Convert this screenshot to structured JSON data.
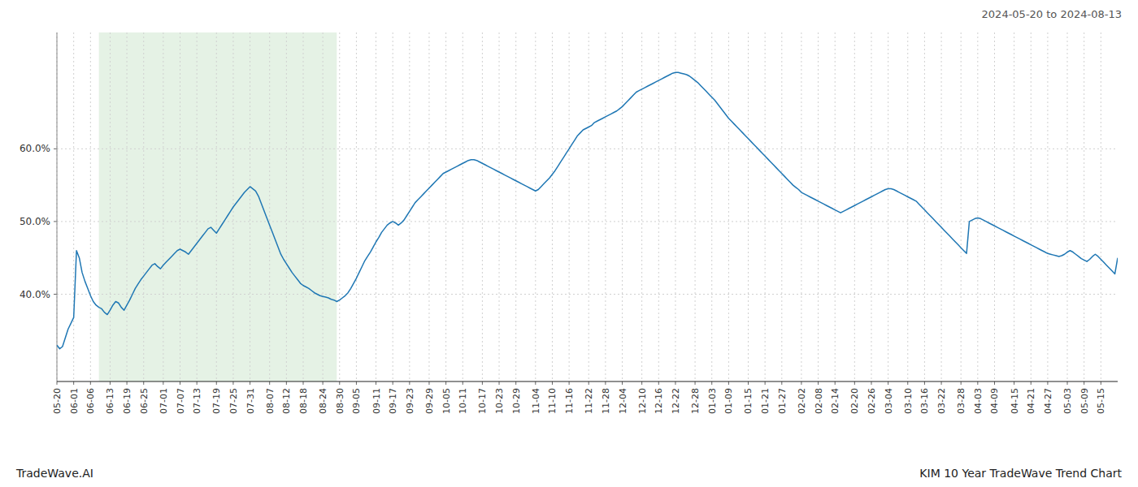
{
  "chart_data": {
    "type": "line",
    "title": "2024-05-20 to 2024-08-13",
    "annotations": [
      "TradeWave.AI",
      "KIM 10 Year TradeWave Trend Chart"
    ],
    "color": "#1f77b4",
    "grid": true,
    "ylim": [
      0.28,
      0.76
    ],
    "yticks": [
      {
        "value": 0.4,
        "label": "40.0%"
      },
      {
        "value": 0.5,
        "label": "50.0%"
      },
      {
        "value": 0.6,
        "label": "60.0%"
      }
    ],
    "highlight": {
      "from": 15,
      "to": 100,
      "color": "#d4ead4"
    },
    "categories": [
      "05-20",
      null,
      null,
      null,
      null,
      null,
      "06-01",
      null,
      null,
      null,
      null,
      null,
      "06-06",
      null,
      null,
      null,
      null,
      null,
      null,
      "06-13",
      null,
      null,
      null,
      null,
      null,
      "06-19",
      null,
      null,
      null,
      null,
      null,
      "06-25",
      null,
      null,
      null,
      null,
      null,
      null,
      "07-01",
      null,
      null,
      null,
      null,
      null,
      "07-07",
      null,
      null,
      null,
      null,
      null,
      "07-13",
      null,
      null,
      null,
      null,
      null,
      null,
      "07-19",
      null,
      null,
      null,
      null,
      null,
      "07-25",
      null,
      null,
      null,
      null,
      null,
      "07-31",
      null,
      null,
      null,
      null,
      null,
      null,
      "08-07",
      null,
      null,
      null,
      null,
      null,
      "08-12",
      null,
      null,
      null,
      null,
      null,
      "08-18",
      null,
      null,
      null,
      null,
      null,
      null,
      "08-24",
      null,
      null,
      null,
      null,
      null,
      "08-30",
      null,
      null,
      null,
      null,
      null,
      "09-05",
      null,
      null,
      null,
      null,
      null,
      null,
      "09-11",
      null,
      null,
      null,
      null,
      null,
      "09-17",
      null,
      null,
      null,
      null,
      null,
      "09-23",
      null,
      null,
      null,
      null,
      null,
      null,
      "09-29",
      null,
      null,
      null,
      null,
      null,
      "10-05",
      null,
      null,
      null,
      null,
      null,
      "10-11",
      null,
      null,
      null,
      null,
      null,
      null,
      "10-17",
      null,
      null,
      null,
      null,
      null,
      "10-23",
      null,
      null,
      null,
      null,
      null,
      "10-29",
      null,
      null,
      null,
      null,
      null,
      null,
      "11-04",
      null,
      null,
      null,
      null,
      null,
      "11-10",
      null,
      null,
      null,
      null,
      null,
      "11-16",
      null,
      null,
      null,
      null,
      null,
      null,
      "11-22",
      null,
      null,
      null,
      null,
      null,
      "11-28",
      null,
      null,
      null,
      null,
      null,
      "12-04",
      null,
      null,
      null,
      null,
      null,
      null,
      "12-10",
      null,
      null,
      null,
      null,
      null,
      "12-16",
      null,
      null,
      null,
      null,
      null,
      "12-22",
      null,
      null,
      null,
      null,
      null,
      null,
      "12-28",
      null,
      null,
      null,
      null,
      null,
      "01-03",
      null,
      null,
      null,
      null,
      null,
      "01-09",
      null,
      null,
      null,
      null,
      null,
      null,
      "01-15",
      null,
      null,
      null,
      null,
      null,
      "01-21",
      null,
      null,
      null,
      null,
      null,
      "01-27",
      null,
      null,
      null,
      null,
      null,
      null,
      "02-02",
      null,
      null,
      null,
      null,
      null,
      "02-08",
      null,
      null,
      null,
      null,
      null,
      "02-14",
      null,
      null,
      null,
      null,
      null,
      null,
      "02-20",
      null,
      null,
      null,
      null,
      null,
      "02-26",
      null,
      null,
      null,
      null,
      null,
      "03-04",
      null,
      null,
      null,
      null,
      null,
      null,
      "03-10",
      null,
      null,
      null,
      null,
      null,
      "03-16",
      null,
      null,
      null,
      null,
      null,
      "03-22",
      null,
      null,
      null,
      null,
      null,
      null,
      "03-28",
      null,
      null,
      null,
      null,
      null,
      "04-03",
      null,
      null,
      null,
      null,
      null,
      "04-09",
      null,
      null,
      null,
      null,
      null,
      null,
      "04-15",
      null,
      null,
      null,
      null,
      null,
      "04-21",
      null,
      null,
      null,
      null,
      null,
      "04-27",
      null,
      null,
      null,
      null,
      null,
      null,
      "05-03",
      null,
      null,
      null,
      null,
      null,
      "05-09",
      null,
      null,
      null,
      null,
      null,
      "05-15",
      null,
      null,
      null,
      null,
      null,
      null
    ],
    "values": [
      0.33,
      0.325,
      0.328,
      0.34,
      0.352,
      0.36,
      0.368,
      0.46,
      0.45,
      0.43,
      0.418,
      0.408,
      0.398,
      0.39,
      0.385,
      0.382,
      0.38,
      0.375,
      0.372,
      0.378,
      0.385,
      0.39,
      0.388,
      0.382,
      0.378,
      0.385,
      0.392,
      0.4,
      0.408,
      0.414,
      0.42,
      0.425,
      0.43,
      0.435,
      0.44,
      0.442,
      0.438,
      0.435,
      0.44,
      0.444,
      0.448,
      0.452,
      0.456,
      0.46,
      0.462,
      0.46,
      0.458,
      0.455,
      0.46,
      0.465,
      0.47,
      0.475,
      0.48,
      0.485,
      0.49,
      0.492,
      0.488,
      0.484,
      0.49,
      0.496,
      0.502,
      0.508,
      0.514,
      0.52,
      0.525,
      0.53,
      0.535,
      0.54,
      0.544,
      0.548,
      0.545,
      0.542,
      0.535,
      0.525,
      0.515,
      0.505,
      0.495,
      0.485,
      0.475,
      0.465,
      0.455,
      0.448,
      0.442,
      0.436,
      0.43,
      0.425,
      0.42,
      0.415,
      0.412,
      0.41,
      0.408,
      0.405,
      0.402,
      0.4,
      0.398,
      0.397,
      0.396,
      0.395,
      0.393,
      0.392,
      0.39,
      0.392,
      0.395,
      0.398,
      0.402,
      0.408,
      0.415,
      0.422,
      0.43,
      0.438,
      0.446,
      0.452,
      0.458,
      0.465,
      0.472,
      0.478,
      0.485,
      0.49,
      0.495,
      0.498,
      0.5,
      0.498,
      0.495,
      0.498,
      0.502,
      0.508,
      0.514,
      0.52,
      0.526,
      0.53,
      0.534,
      0.538,
      0.542,
      0.546,
      0.55,
      0.554,
      0.558,
      0.562,
      0.566,
      0.568,
      0.57,
      0.572,
      0.574,
      0.576,
      0.578,
      0.58,
      0.582,
      0.584,
      0.585,
      0.585,
      0.584,
      0.582,
      0.58,
      0.578,
      0.576,
      0.574,
      0.572,
      0.57,
      0.568,
      0.566,
      0.564,
      0.562,
      0.56,
      0.558,
      0.556,
      0.554,
      0.552,
      0.55,
      0.548,
      0.546,
      0.544,
      0.542,
      0.544,
      0.548,
      0.552,
      0.556,
      0.56,
      0.565,
      0.57,
      0.576,
      0.582,
      0.588,
      0.594,
      0.6,
      0.606,
      0.612,
      0.618,
      0.622,
      0.626,
      0.628,
      0.63,
      0.632,
      0.636,
      0.638,
      0.64,
      0.642,
      0.644,
      0.646,
      0.648,
      0.65,
      0.652,
      0.655,
      0.658,
      0.662,
      0.666,
      0.67,
      0.674,
      0.678,
      0.68,
      0.682,
      0.684,
      0.686,
      0.688,
      0.69,
      0.692,
      0.694,
      0.696,
      0.698,
      0.7,
      0.702,
      0.704,
      0.705,
      0.705,
      0.704,
      0.703,
      0.702,
      0.7,
      0.697,
      0.694,
      0.691,
      0.687,
      0.683,
      0.679,
      0.675,
      0.671,
      0.667,
      0.662,
      0.657,
      0.652,
      0.647,
      0.642,
      0.638,
      0.634,
      0.63,
      0.626,
      0.622,
      0.618,
      0.614,
      0.61,
      0.606,
      0.602,
      0.598,
      0.594,
      0.59,
      0.586,
      0.582,
      0.578,
      0.574,
      0.57,
      0.566,
      0.562,
      0.558,
      0.554,
      0.55,
      0.547,
      0.544,
      0.54,
      0.538,
      0.536,
      0.534,
      0.532,
      0.53,
      0.528,
      0.526,
      0.524,
      0.522,
      0.52,
      0.518,
      0.516,
      0.514,
      0.512,
      0.514,
      0.516,
      0.518,
      0.52,
      0.522,
      0.524,
      0.526,
      0.528,
      0.53,
      0.532,
      0.534,
      0.536,
      0.538,
      0.54,
      0.542,
      0.544,
      0.545,
      0.545,
      0.544,
      0.542,
      0.54,
      0.538,
      0.536,
      0.534,
      0.532,
      0.53,
      0.528,
      0.524,
      0.52,
      0.516,
      0.512,
      0.508,
      0.504,
      0.5,
      0.496,
      0.492,
      0.488,
      0.484,
      0.48,
      0.476,
      0.472,
      0.468,
      0.464,
      0.46,
      0.456,
      0.5,
      0.502,
      0.504,
      0.505,
      0.504,
      0.502,
      0.5,
      0.498,
      0.496,
      0.494,
      0.492,
      0.49,
      0.488,
      0.486,
      0.484,
      0.482,
      0.48,
      0.478,
      0.476,
      0.474,
      0.472,
      0.47,
      0.468,
      0.466,
      0.464,
      0.462,
      0.46,
      0.458,
      0.456,
      0.455,
      0.454,
      0.453,
      0.452,
      0.453,
      0.455,
      0.458,
      0.46,
      0.458,
      0.455,
      0.452,
      0.449,
      0.447,
      0.445,
      0.448,
      0.452,
      0.455,
      0.452,
      0.448,
      0.444,
      0.44,
      0.436,
      0.432,
      0.428,
      0.45
    ]
  }
}
